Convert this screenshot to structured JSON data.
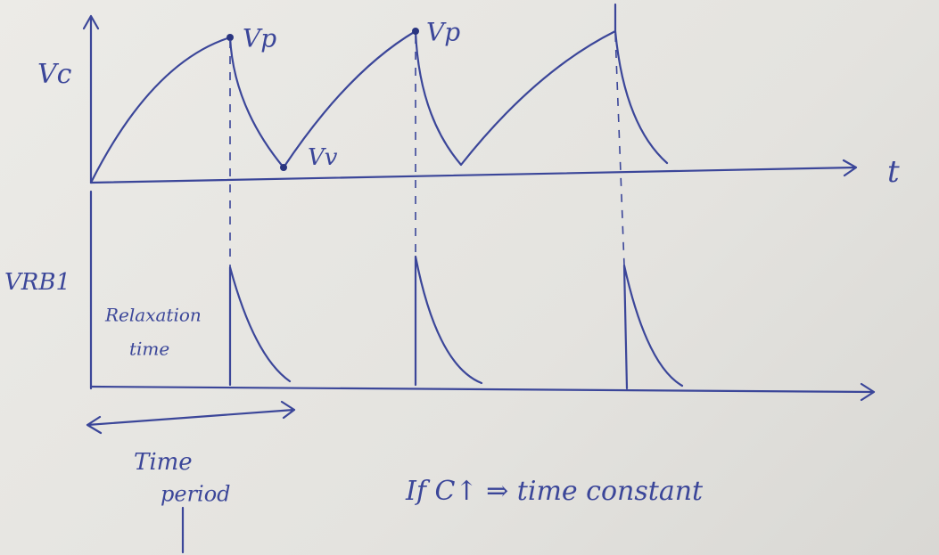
{
  "title_labels": {
    "vc": "Vc",
    "vp_1": "Vp",
    "vp_2": "Vp",
    "vv": "Vv",
    "t_axis": "t",
    "vrb1": "VRB1"
  },
  "annotations": {
    "relaxation_line_1": "Relaxation",
    "relaxation_line_2": "time",
    "period_line_1": "Time",
    "period_line_2": "period",
    "note": "If C↑ ⇒ time constant"
  }
}
